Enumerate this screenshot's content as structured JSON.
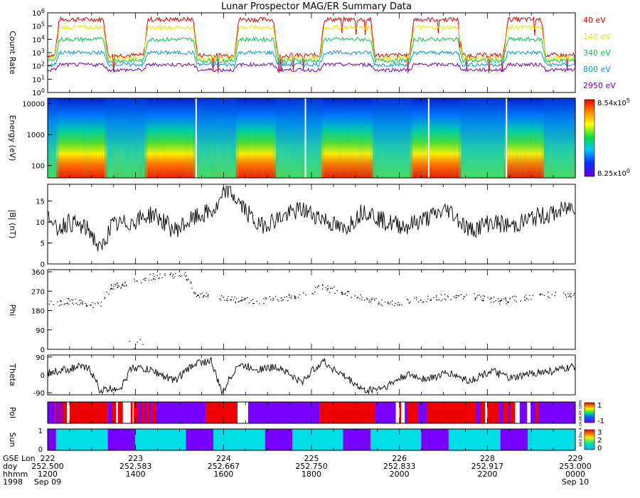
{
  "chart_data": {
    "type": "line",
    "title": "Lunar Prospector MAG/ER Summary Data",
    "time": {
      "gse_lon": [
        "222",
        "223",
        "224",
        "225",
        "226",
        "228",
        "229"
      ],
      "doy": [
        "252.500",
        "252.583",
        "252.667",
        "252.750",
        "252.833",
        "252.917",
        "253.000"
      ],
      "hhmm": [
        "1200",
        "1400",
        "1600",
        "1800",
        "2000",
        "2200",
        "0000"
      ],
      "date_start": "Sep 09",
      "date_end": "Sep 10",
      "row_labels": [
        "GSE Lon",
        "doy",
        "hhmm",
        "1998"
      ],
      "xlim": [
        252.5,
        253.0
      ]
    },
    "colors": {
      "40 eV": "#e00000",
      "140 eV": "#e8e800",
      "340 eV": "#00cc44",
      "800 eV": "#0099dd",
      "2950 eV": "#7700bb"
    },
    "panels": [
      {
        "id": "count-rate",
        "ylabel": "Count Rate",
        "yscale": "log",
        "ylim_exp": [
          0,
          6
        ],
        "ytick_base": "10",
        "yticks_exp": [
          "0",
          "1",
          "2",
          "3",
          "4",
          "5",
          "6"
        ],
        "series": [
          {
            "name": "40 eV",
            "typical_log": 5.5,
            "low_log": 2.8
          },
          {
            "name": "140 eV",
            "typical_log": 4.9,
            "low_log": 2.6
          },
          {
            "name": "340 eV",
            "typical_log": 4.0,
            "low_log": 2.4
          },
          {
            "name": "800 eV",
            "typical_log": 3.0,
            "low_log": 2.1
          },
          {
            "name": "2950 eV",
            "typical_log": 2.1,
            "low_log": 1.7
          }
        ],
        "plasma_sheet_intervals": [
          [
            252.507,
            252.557
          ],
          [
            252.591,
            252.642
          ],
          [
            252.677,
            252.718
          ],
          [
            252.758,
            252.81
          ],
          [
            252.843,
            252.893
          ],
          [
            252.932,
            252.972
          ]
        ]
      },
      {
        "id": "energy-spectrogram",
        "type": "heatmap",
        "ylabel": "Energy (eV)",
        "yscale": "log",
        "ylim": [
          40,
          15000
        ],
        "yticks": [
          "100",
          "1000",
          "10000"
        ],
        "colorbar_max": "8.54x10",
        "colorbar_max_exp": "5",
        "colorbar_min": "8.25x10",
        "colorbar_min_exp": "0",
        "data_gaps": [
          252.6407,
          252.7443,
          252.8611,
          252.9348
        ]
      },
      {
        "id": "b-magnitude",
        "ylabel": "|B| (nT)",
        "ylim": [
          0,
          19
        ],
        "yticks": [
          "0",
          "5",
          "10",
          "15"
        ],
        "keypoints": [
          [
            252.5,
            14
          ],
          [
            252.505,
            8
          ],
          [
            252.52,
            10
          ],
          [
            252.54,
            8
          ],
          [
            252.55,
            3
          ],
          [
            252.56,
            9
          ],
          [
            252.58,
            10
          ],
          [
            252.6,
            12
          ],
          [
            252.62,
            8
          ],
          [
            252.64,
            11
          ],
          [
            252.66,
            13
          ],
          [
            252.67,
            18
          ],
          [
            252.68,
            15
          ],
          [
            252.7,
            9
          ],
          [
            252.72,
            11
          ],
          [
            252.74,
            13
          ],
          [
            252.76,
            11
          ],
          [
            252.78,
            8
          ],
          [
            252.8,
            13
          ],
          [
            252.82,
            10
          ],
          [
            252.84,
            9
          ],
          [
            252.86,
            11
          ],
          [
            252.88,
            13
          ],
          [
            252.9,
            8
          ],
          [
            252.92,
            10
          ],
          [
            252.94,
            9
          ],
          [
            252.96,
            11
          ],
          [
            252.98,
            12
          ],
          [
            253.0,
            14
          ]
        ],
        "noise": 2.2
      },
      {
        "id": "phi",
        "ylabel": "Phi",
        "ylim": [
          0,
          370
        ],
        "yticks": [
          "0",
          "90",
          "180",
          "270",
          "360"
        ],
        "keypoints": [
          [
            252.5,
            210
          ],
          [
            252.52,
            225
          ],
          [
            252.55,
            205
          ],
          [
            252.56,
            290
          ],
          [
            252.6,
            340
          ],
          [
            252.63,
            350
          ],
          [
            252.64,
            260
          ],
          [
            252.66,
            240
          ],
          [
            252.7,
            225
          ],
          [
            252.74,
            250
          ],
          [
            252.76,
            290
          ],
          [
            252.78,
            265
          ],
          [
            252.8,
            240
          ],
          [
            252.82,
            215
          ],
          [
            252.84,
            225
          ],
          [
            252.86,
            235
          ],
          [
            252.88,
            245
          ],
          [
            252.9,
            250
          ],
          [
            252.93,
            225
          ],
          [
            252.96,
            250
          ],
          [
            252.98,
            255
          ],
          [
            253.0,
            250
          ]
        ],
        "noise": 15,
        "low_excursion": [
          252.575,
          252.59
        ]
      },
      {
        "id": "theta",
        "ylabel": "Theta",
        "ylim": [
          -100,
          100
        ],
        "yticks": [
          "-90",
          "0",
          "90"
        ],
        "keypoints": [
          [
            252.5,
            10
          ],
          [
            252.51,
            20
          ],
          [
            252.53,
            40
          ],
          [
            252.54,
            30
          ],
          [
            252.55,
            -80
          ],
          [
            252.57,
            -60
          ],
          [
            252.58,
            40
          ],
          [
            252.6,
            20
          ],
          [
            252.62,
            -30
          ],
          [
            252.64,
            60
          ],
          [
            252.655,
            70
          ],
          [
            252.665,
            -90
          ],
          [
            252.68,
            50
          ],
          [
            252.7,
            30
          ],
          [
            252.72,
            40
          ],
          [
            252.74,
            -40
          ],
          [
            252.76,
            70
          ],
          [
            252.79,
            -40
          ],
          [
            252.8,
            -80
          ],
          [
            252.82,
            -60
          ],
          [
            252.84,
            0
          ],
          [
            252.86,
            -20
          ],
          [
            252.88,
            10
          ],
          [
            252.9,
            -30
          ],
          [
            252.92,
            20
          ],
          [
            252.94,
            -20
          ],
          [
            252.96,
            10
          ],
          [
            252.98,
            20
          ],
          [
            253.0,
            40
          ]
        ],
        "noise": 20
      },
      {
        "id": "pol",
        "ylabel": "Pol",
        "colorbar_ticks": [
          "1",
          "-1"
        ],
        "vertical_note": "Wed Dec 4 14:08:49 1999",
        "segments": [
          [
            252.5,
            252.507,
            "purple"
          ],
          [
            252.507,
            252.524,
            "mixed"
          ],
          [
            252.524,
            252.557,
            "red"
          ],
          [
            252.557,
            252.603,
            "mixed"
          ],
          [
            252.603,
            252.65,
            "purple"
          ],
          [
            252.65,
            252.68,
            "red"
          ],
          [
            252.68,
            252.69,
            "white"
          ],
          [
            252.69,
            252.758,
            "purple"
          ],
          [
            252.758,
            252.81,
            "red"
          ],
          [
            252.81,
            252.83,
            "purple"
          ],
          [
            252.83,
            252.86,
            "mixed"
          ],
          [
            252.86,
            252.905,
            "red"
          ],
          [
            252.905,
            252.965,
            "mixed"
          ],
          [
            252.965,
            253.0,
            "purple"
          ]
        ]
      },
      {
        "id": "sun",
        "ylabel": "Sun",
        "yticks": [
          "0",
          "1"
        ],
        "colorbar_ticks": [
          "3",
          "2",
          "0"
        ],
        "segments": [
          [
            252.5,
            252.508,
            "purple"
          ],
          [
            252.508,
            252.557,
            "cyan"
          ],
          [
            252.557,
            252.583,
            "purple"
          ],
          [
            252.583,
            252.631,
            "cyan"
          ],
          [
            252.631,
            252.657,
            "purple"
          ],
          [
            252.657,
            252.706,
            "cyan"
          ],
          [
            252.706,
            252.732,
            "purple"
          ],
          [
            252.732,
            252.78,
            "cyan"
          ],
          [
            252.78,
            252.806,
            "purple"
          ],
          [
            252.806,
            252.854,
            "cyan"
          ],
          [
            252.854,
            252.88,
            "purple"
          ],
          [
            252.88,
            252.929,
            "cyan"
          ],
          [
            252.929,
            252.955,
            "purple"
          ],
          [
            252.955,
            253.0,
            "cyan"
          ]
        ]
      }
    ]
  }
}
